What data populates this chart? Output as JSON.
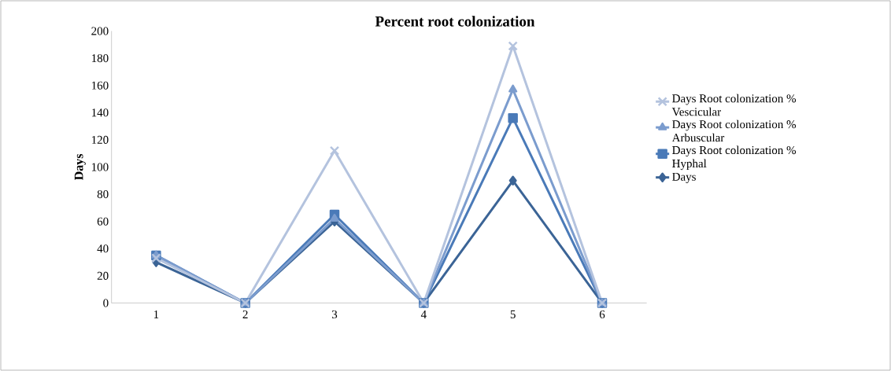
{
  "chart_data": {
    "type": "line",
    "title": "Percent root colonization",
    "ylabel": "Days",
    "categories": [
      "1",
      "2",
      "3",
      "4",
      "5",
      "6"
    ],
    "series": [
      {
        "name": "Days Root colonization % Vescicular",
        "color": "#b4c3de",
        "marker": "cross",
        "values": [
          33,
          0,
          112,
          0,
          189,
          0
        ]
      },
      {
        "name": "Days Root colonization % Arbuscular",
        "color": "#7b9cce",
        "marker": "triangle",
        "values": [
          35,
          0,
          62,
          0,
          157,
          0
        ]
      },
      {
        "name": "Days Root colonization % Hyphal",
        "color": "#4a7ab8",
        "marker": "square",
        "values": [
          35,
          0,
          65,
          0,
          136,
          0
        ]
      },
      {
        "name": "Days",
        "color": "#3b6496",
        "marker": "diamond",
        "values": [
          30,
          0,
          60,
          0,
          90,
          0
        ]
      }
    ],
    "ylim": [
      0,
      200
    ],
    "yticks": [
      0,
      20,
      40,
      60,
      80,
      100,
      120,
      140,
      160,
      180,
      200
    ],
    "grid": false,
    "legend": "right",
    "line_style": "solid"
  }
}
